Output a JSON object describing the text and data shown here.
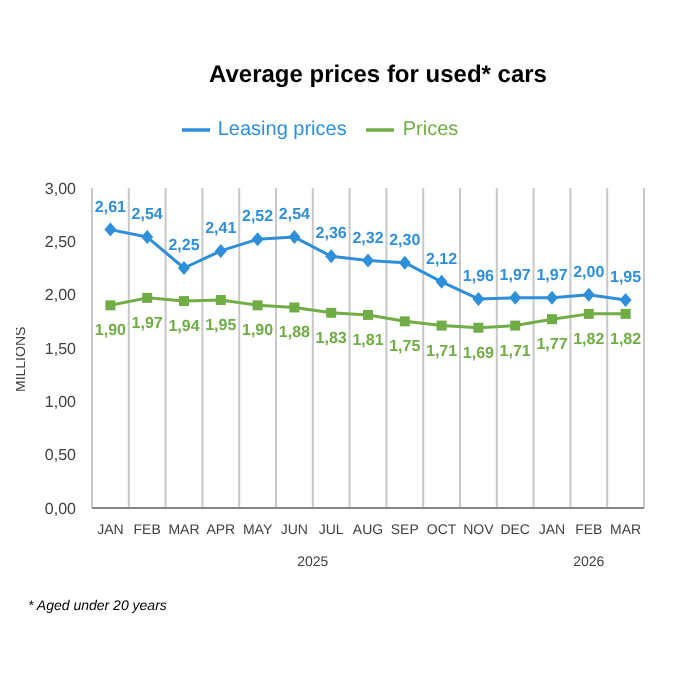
{
  "chart_data": {
    "type": "line",
    "title": "Average prices for used* cars",
    "ylabel": "MILLIONS",
    "categories": [
      "JAN",
      "FEB",
      "MAR",
      "APR",
      "MAY",
      "JUN",
      "JUL",
      "AUG",
      "SEP",
      "OCT",
      "NOV",
      "DEC",
      "JAN",
      "FEB",
      "MAR"
    ],
    "series": [
      {
        "name": "Leasing prices",
        "color": "#2e8fd8",
        "marker": "diamond",
        "values": [
          2.61,
          2.54,
          2.25,
          2.41,
          2.52,
          2.54,
          2.36,
          2.32,
          2.3,
          2.12,
          1.96,
          1.97,
          1.97,
          2.0,
          1.95
        ],
        "value_labels": [
          "2,61",
          "2,54",
          "2,25",
          "2,41",
          "2,52",
          "2,54",
          "2,36",
          "2,32",
          "2,30",
          "2,12",
          "1,96",
          "1,97",
          "1,97",
          "2,00",
          "1,95"
        ]
      },
      {
        "name": "Prices",
        "color": "#70ad47",
        "marker": "square",
        "values": [
          1.9,
          1.97,
          1.94,
          1.95,
          1.9,
          1.88,
          1.83,
          1.81,
          1.75,
          1.71,
          1.69,
          1.71,
          1.77,
          1.82,
          1.82
        ],
        "value_labels": [
          "1,90",
          "1,97",
          "1,94",
          "1,95",
          "1,90",
          "1,88",
          "1,83",
          "1,81",
          "1,75",
          "1,71",
          "1,69",
          "1,71",
          "1,77",
          "1,82",
          "1,82"
        ]
      }
    ],
    "ylim": [
      0,
      3
    ],
    "yticks": [
      {
        "value": 0,
        "label": "0,00"
      },
      {
        "value": 0.5,
        "label": "0,50"
      },
      {
        "value": 1,
        "label": "1,00"
      },
      {
        "value": 1.5,
        "label": "1,50"
      },
      {
        "value": 2,
        "label": "2,00"
      },
      {
        "value": 2.5,
        "label": "2,50"
      },
      {
        "value": 3,
        "label": "3,00"
      }
    ],
    "grid": "x",
    "legend": "top",
    "line_style": "solid",
    "annotations": [
      "2025",
      "2026",
      "* Aged under 20 years"
    ]
  }
}
